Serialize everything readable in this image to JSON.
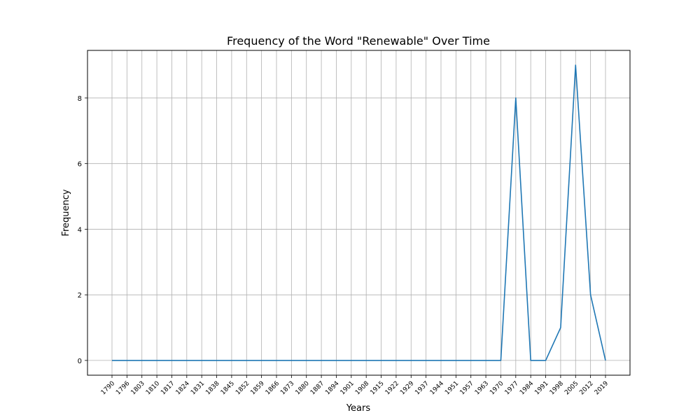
{
  "chart_data": {
    "type": "line",
    "title": "Frequency of the Word \"Renewable\" Over Time",
    "xlabel": "Years",
    "ylabel": "Frequency",
    "grid": true,
    "line_color": "#1f77b4",
    "x": [
      "1790",
      "1796",
      "1803",
      "1810",
      "1817",
      "1824",
      "1831",
      "1838",
      "1845",
      "1852",
      "1859",
      "1866",
      "1873",
      "1880",
      "1887",
      "1894",
      "1901",
      "1908",
      "1915",
      "1922",
      "1929",
      "1937",
      "1944",
      "1951",
      "1957",
      "1963",
      "1970",
      "1977",
      "1984",
      "1991",
      "1998",
      "2005",
      "2012",
      "2019"
    ],
    "y": [
      0,
      0,
      0,
      0,
      0,
      0,
      0,
      0,
      0,
      0,
      0,
      0,
      0,
      0,
      0,
      0,
      0,
      0,
      0,
      0,
      0,
      0,
      0,
      0,
      0,
      0,
      0,
      8,
      0,
      0,
      1,
      9,
      2,
      0
    ],
    "yticks": [
      0,
      2,
      4,
      6,
      8
    ],
    "ylim": [
      -0.45,
      9.45
    ]
  }
}
